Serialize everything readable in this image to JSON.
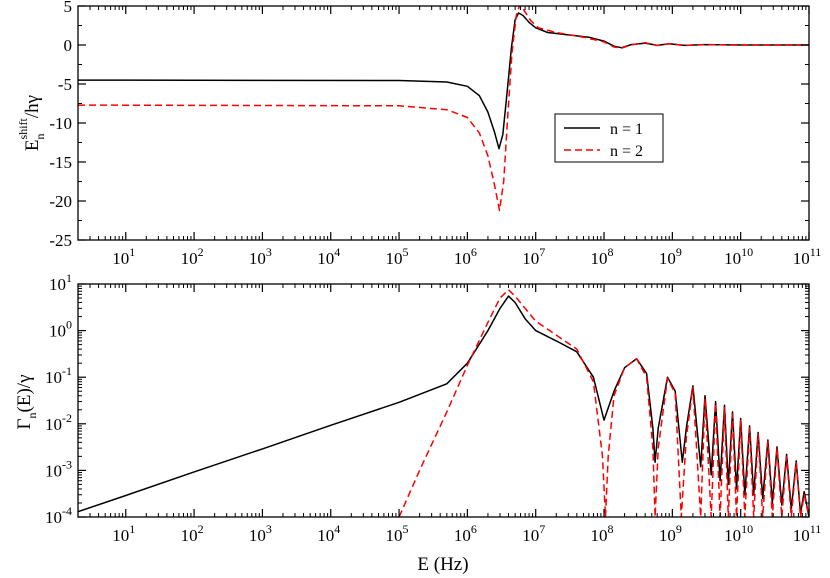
{
  "chart_data": [
    {
      "id": "top",
      "type": "line",
      "x_scale": "log",
      "xlim": [
        2,
        100000000000
      ],
      "ylim": [
        -25,
        5
      ],
      "ylabel": {
        "main": "E",
        "sub": "n",
        "sup": "shift",
        "rest": "/hγ"
      },
      "xlabel": "",
      "x_ticks": [
        {
          "base": "10",
          "exp": "1",
          "value": 10
        },
        {
          "base": "10",
          "exp": "2",
          "value": 100
        },
        {
          "base": "10",
          "exp": "3",
          "value": 1000
        },
        {
          "base": "10",
          "exp": "4",
          "value": 10000
        },
        {
          "base": "10",
          "exp": "5",
          "value": 100000
        },
        {
          "base": "10",
          "exp": "6",
          "value": 1000000
        },
        {
          "base": "10",
          "exp": "7",
          "value": 10000000
        },
        {
          "base": "10",
          "exp": "8",
          "value": 100000000
        },
        {
          "base": "10",
          "exp": "9",
          "value": 1000000000
        },
        {
          "base": "10",
          "exp": "10",
          "value": 10000000000
        },
        {
          "base": "10",
          "exp": "11",
          "value": 100000000000
        }
      ],
      "y_ticks": [
        {
          "label": "5",
          "value": 5
        },
        {
          "label": "0",
          "value": 0
        },
        {
          "label": "-5",
          "value": -5
        },
        {
          "label": "-10",
          "value": -10
        },
        {
          "label": "-15",
          "value": -15
        },
        {
          "label": "-20",
          "value": -20
        },
        {
          "label": "-25",
          "value": -25
        }
      ],
      "legend": {
        "placement": "right-middle",
        "entries": [
          {
            "label": "n = 1",
            "color": "#000000",
            "dash": "solid"
          },
          {
            "label": "n = 2",
            "color": "#ff0000",
            "dash": "dashed"
          }
        ]
      },
      "series": [
        {
          "name": "n = 1",
          "color": "#000000",
          "dash": "solid",
          "points": [
            [
              2,
              -4.5
            ],
            [
              100000,
              -4.55
            ],
            [
              500000,
              -4.75
            ],
            [
              1000000,
              -5.3
            ],
            [
              1500000,
              -6.5
            ],
            [
              2000000,
              -8.6
            ],
            [
              2500000,
              -11.2
            ],
            [
              2900000,
              -13.3
            ],
            [
              3300000,
              -11.5
            ],
            [
              3800000,
              -6.2
            ],
            [
              4400000,
              -0.5
            ],
            [
              5000000,
              3.2
            ],
            [
              5600000,
              4.1
            ],
            [
              6500000,
              3.8
            ],
            [
              8000000,
              2.9
            ],
            [
              10000000,
              2.2
            ],
            [
              15000000,
              1.6
            ],
            [
              30000000,
              1.3
            ],
            [
              60000000,
              1.0
            ],
            [
              100000000,
              0.5
            ],
            [
              140000000,
              -0.15
            ],
            [
              180000000,
              -0.35
            ],
            [
              250000000,
              0.05
            ],
            [
              400000000,
              0.25
            ],
            [
              600000000,
              -0.05
            ],
            [
              900000000,
              0.15
            ],
            [
              1500000000,
              -0.05
            ],
            [
              3000000000,
              0.05
            ],
            [
              10000000000,
              0.0
            ],
            [
              100000000000,
              0.0
            ]
          ]
        },
        {
          "name": "n = 2",
          "color": "#ff0000",
          "dash": "dashed",
          "points": [
            [
              2,
              -7.7
            ],
            [
              100000,
              -7.8
            ],
            [
              500000,
              -8.3
            ],
            [
              1000000,
              -9.3
            ],
            [
              1500000,
              -11.3
            ],
            [
              2000000,
              -14.2
            ],
            [
              2500000,
              -18.0
            ],
            [
              2950000,
              -21.2
            ],
            [
              3400000,
              -17.5
            ],
            [
              3900000,
              -9.0
            ],
            [
              4500000,
              -1.0
            ],
            [
              5200000,
              3.8
            ],
            [
              5900000,
              5.2
            ],
            [
              6800000,
              4.4
            ],
            [
              8500000,
              3.1
            ],
            [
              11000000,
              2.2
            ],
            [
              20000000,
              1.6
            ],
            [
              50000000,
              1.0
            ],
            [
              100000000,
              0.4
            ],
            [
              140000000,
              -0.25
            ],
            [
              180000000,
              -0.4
            ],
            [
              260000000,
              0.05
            ],
            [
              400000000,
              0.3
            ],
            [
              600000000,
              -0.05
            ],
            [
              900000000,
              0.15
            ],
            [
              1500000000,
              -0.05
            ],
            [
              3000000000,
              0.05
            ],
            [
              10000000000,
              0.0
            ],
            [
              100000000000,
              0.0
            ]
          ]
        }
      ]
    },
    {
      "id": "bottom",
      "type": "line",
      "x_scale": "log",
      "y_scale": "log",
      "xlim": [
        2,
        100000000000
      ],
      "ylim": [
        0.0001,
        10
      ],
      "ylabel": {
        "main": "Γ",
        "sub": "n",
        "rest": "(E)/γ"
      },
      "xlabel": "E (Hz)",
      "x_ticks": [
        {
          "base": "10",
          "exp": "1",
          "value": 10
        },
        {
          "base": "10",
          "exp": "2",
          "value": 100
        },
        {
          "base": "10",
          "exp": "3",
          "value": 1000
        },
        {
          "base": "10",
          "exp": "4",
          "value": 10000
        },
        {
          "base": "10",
          "exp": "5",
          "value": 100000
        },
        {
          "base": "10",
          "exp": "6",
          "value": 1000000
        },
        {
          "base": "10",
          "exp": "7",
          "value": 10000000
        },
        {
          "base": "10",
          "exp": "8",
          "value": 100000000
        },
        {
          "base": "10",
          "exp": "9",
          "value": 1000000000
        },
        {
          "base": "10",
          "exp": "10",
          "value": 10000000000
        },
        {
          "base": "10",
          "exp": "11",
          "value": 100000000000
        }
      ],
      "y_ticks": [
        {
          "base": "10",
          "exp": "1",
          "value": 10
        },
        {
          "base": "10",
          "exp": "0",
          "value": 1
        },
        {
          "base": "10",
          "exp": "-1",
          "value": 0.1
        },
        {
          "base": "10",
          "exp": "-2",
          "value": 0.01
        },
        {
          "base": "10",
          "exp": "-3",
          "value": 0.001
        },
        {
          "base": "10",
          "exp": "-4",
          "value": 0.0001
        }
      ],
      "series": [
        {
          "name": "n = 1",
          "color": "#000000",
          "dash": "solid",
          "points": [
            [
              2,
              0.00013
            ],
            [
              10,
              0.00029
            ],
            [
              100,
              0.00093
            ],
            [
              1000,
              0.0029
            ],
            [
              10000,
              0.0093
            ],
            [
              100000,
              0.029
            ],
            [
              500000,
              0.072
            ],
            [
              1000000,
              0.2
            ],
            [
              2000000,
              1.0
            ],
            [
              3000000,
              3.0
            ],
            [
              4000000,
              5.5
            ],
            [
              5000000,
              4.0
            ],
            [
              7000000,
              1.8
            ],
            [
              10000000,
              1.0
            ],
            [
              20000000,
              0.6
            ],
            [
              40000000,
              0.35
            ],
            [
              70000000,
              0.1
            ],
            [
              100000000,
              0.012
            ],
            [
              140000000,
              0.05
            ],
            [
              200000000,
              0.16
            ],
            [
              300000000,
              0.25
            ],
            [
              420000000,
              0.12
            ],
            [
              520000000,
              0.008
            ],
            [
              560000000,
              0.0015
            ],
            [
              620000000,
              0.008
            ],
            [
              850000000,
              0.1
            ],
            [
              1100000000,
              0.05
            ],
            [
              1400000000,
              0.0015
            ],
            [
              1600000000,
              0.008
            ],
            [
              2000000000,
              0.065
            ],
            [
              2600000000,
              0.0012
            ],
            [
              3000000000,
              0.04
            ],
            [
              3700000000,
              0.0008
            ],
            [
              4300000000,
              0.03
            ],
            [
              5000000000,
              0.0006
            ],
            [
              5800000000,
              0.025
            ],
            [
              6600000000,
              0.0005
            ],
            [
              7600000000,
              0.018
            ],
            [
              8700000000,
              0.0004
            ],
            [
              10000000000,
              0.013
            ],
            [
              11500000000,
              0.0003
            ],
            [
              13500000000,
              0.009
            ],
            [
              15500000000,
              0.0003
            ],
            [
              18000000000,
              0.0065
            ],
            [
              21000000000,
              0.00025
            ],
            [
              25000000000,
              0.0045
            ],
            [
              29000000000,
              0.0002
            ],
            [
              34000000000,
              0.0032
            ],
            [
              40000000000,
              0.00018
            ],
            [
              47000000000,
              0.0022
            ],
            [
              55000000000,
              0.00015
            ],
            [
              65000000000,
              0.0016
            ],
            [
              75000000000,
              0.00012
            ],
            [
              85000000000,
              0.00035
            ],
            [
              100000000000,
              0.0001
            ]
          ]
        },
        {
          "name": "n = 2",
          "color": "#ff0000",
          "dash": "dashed",
          "points": [
            [
              100000,
              0.0001
            ],
            [
              200000,
              0.001
            ],
            [
              500000,
              0.018
            ],
            [
              1000000,
              0.18
            ],
            [
              2000000,
              1.5
            ],
            [
              3000000,
              5.0
            ],
            [
              4000000,
              7.5
            ],
            [
              5000000,
              5.5
            ],
            [
              7000000,
              3.0
            ],
            [
              10000000,
              1.6
            ],
            [
              20000000,
              0.8
            ],
            [
              40000000,
              0.4
            ],
            [
              70000000,
              0.08
            ],
            [
              95000000,
              0.002
            ],
            [
              105000000,
              0.0001
            ],
            [
              115000000,
              0.002
            ],
            [
              140000000,
              0.04
            ],
            [
              200000000,
              0.16
            ],
            [
              300000000,
              0.25
            ],
            [
              420000000,
              0.1
            ],
            [
              520000000,
              0.003
            ],
            [
              560000000,
              0.0001
            ],
            [
              620000000,
              0.003
            ],
            [
              850000000,
              0.095
            ],
            [
              1100000000,
              0.045
            ],
            [
              1350000000,
              0.0001
            ],
            [
              1600000000,
              0.005
            ],
            [
              2000000000,
              0.06
            ],
            [
              2600000000,
              0.0001
            ],
            [
              3000000000,
              0.035
            ],
            [
              3700000000,
              0.0001
            ],
            [
              4300000000,
              0.028
            ],
            [
              5000000000,
              0.0001
            ],
            [
              5800000000,
              0.022
            ],
            [
              6600000000,
              0.0001
            ],
            [
              7600000000,
              0.016
            ],
            [
              8700000000,
              0.0001
            ],
            [
              10000000000,
              0.012
            ],
            [
              11500000000,
              0.0001
            ],
            [
              13500000000,
              0.008
            ],
            [
              15500000000,
              0.0001
            ],
            [
              18000000000,
              0.006
            ],
            [
              21000000000,
              0.0001
            ],
            [
              25000000000,
              0.0042
            ],
            [
              29000000000,
              0.0001
            ],
            [
              34000000000,
              0.003
            ],
            [
              40000000000,
              0.0001
            ],
            [
              47000000000,
              0.002
            ],
            [
              55000000000,
              0.0001
            ],
            [
              65000000000,
              0.0015
            ],
            [
              75000000000,
              0.0001
            ],
            [
              85000000000,
              0.0003
            ],
            [
              100000000000,
              0.0001
            ]
          ]
        }
      ]
    }
  ]
}
